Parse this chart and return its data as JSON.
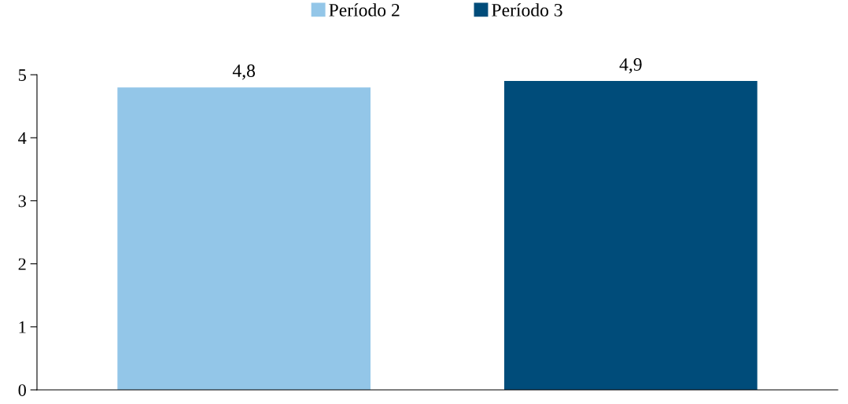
{
  "chart_data": {
    "type": "bar",
    "categories": [
      null
    ],
    "series": [
      {
        "name": "Período 2",
        "color": "#93c6e8",
        "values": [
          4.8
        ],
        "value_labels": [
          "4,8"
        ]
      },
      {
        "name": "Período 3",
        "color": "#004c7a",
        "values": [
          4.9
        ],
        "value_labels": [
          "4,9"
        ]
      }
    ],
    "ylim": [
      0,
      5
    ],
    "yticks": [
      0,
      1,
      2,
      3,
      4,
      5
    ],
    "grid": false,
    "legend": "top"
  }
}
